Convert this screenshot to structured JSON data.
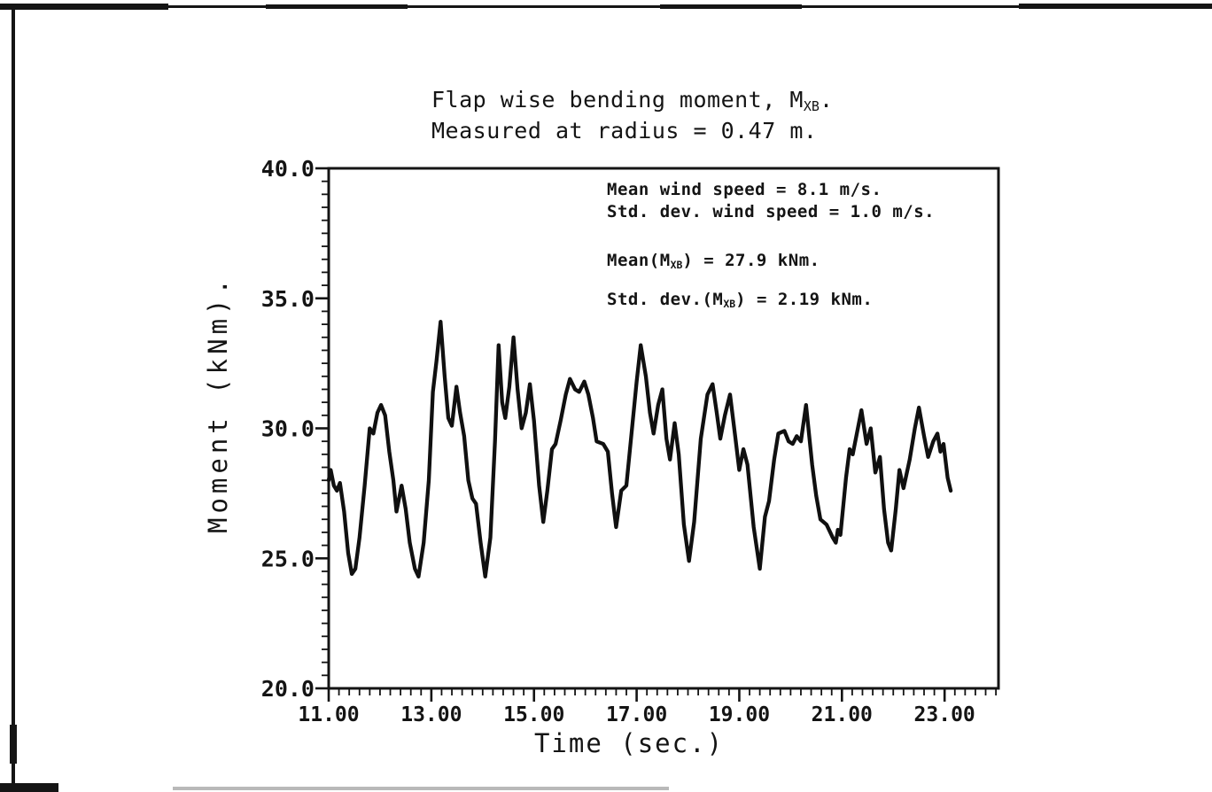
{
  "page": {
    "background": "#ffffff",
    "ink": "#141414"
  },
  "chart_data": {
    "type": "line",
    "title": {
      "pre": "Flap wise bending moment, M",
      "sub": "XB",
      "post": "."
    },
    "subtitle": "Measured at radius = 0.47 m.",
    "xlabel": "Time (sec.)",
    "ylabel": "Moment (kNm).",
    "xlim": [
      11.0,
      24.05
    ],
    "ylim": [
      20.0,
      40.0
    ],
    "grid": false,
    "legend": "none",
    "x_ticks": {
      "values": [
        11,
        13,
        15,
        17,
        19,
        21,
        23
      ],
      "labels": [
        "11.00",
        "13.00",
        "15.00",
        "17.00",
        "19.00",
        "21.00",
        "23.00"
      ],
      "minor_step": 0.2,
      "minor_max": 24.0
    },
    "y_ticks": {
      "values": [
        20,
        25,
        30,
        35,
        40
      ],
      "labels": [
        "20.0",
        "25.0",
        "30.0",
        "35.0",
        "40.0"
      ],
      "minor_step": 0.5
    },
    "annotations": [
      {
        "pre": "Mean wind speed = 8.1 m/s.",
        "sub": "",
        "post": ""
      },
      {
        "pre": "Std. dev. wind speed = 1.0 m/s.",
        "sub": "",
        "post": ""
      },
      {
        "pre": "Mean(M",
        "sub": "XB",
        "post": ") = 27.9 kNm."
      },
      {
        "pre": "Std. dev.(M",
        "sub": "XB",
        "post": ") = 2.19 kNm."
      }
    ],
    "series": [
      {
        "name": "Flap wise bending moment M_XB vs time",
        "x": [
          11.0,
          11.04,
          11.1,
          11.16,
          11.22,
          11.3,
          11.38,
          11.45,
          11.52,
          11.6,
          11.7,
          11.8,
          11.87,
          11.95,
          12.02,
          12.1,
          12.18,
          12.26,
          12.32,
          12.42,
          12.5,
          12.58,
          12.68,
          12.75,
          12.85,
          12.95,
          13.03,
          13.1,
          13.18,
          13.26,
          13.33,
          13.4,
          13.49,
          13.56,
          13.64,
          13.72,
          13.8,
          13.87,
          13.96,
          14.05,
          14.15,
          14.24,
          14.31,
          14.38,
          14.44,
          14.52,
          14.6,
          14.68,
          14.76,
          14.84,
          14.92,
          15.0,
          15.1,
          15.18,
          15.26,
          15.35,
          15.42,
          15.52,
          15.62,
          15.7,
          15.8,
          15.88,
          15.98,
          16.06,
          16.15,
          16.22,
          16.35,
          16.44,
          16.52,
          16.6,
          16.7,
          16.8,
          16.9,
          17.0,
          17.08,
          17.18,
          17.26,
          17.33,
          17.42,
          17.5,
          17.58,
          17.65,
          17.74,
          17.82,
          17.92,
          18.02,
          18.12,
          18.25,
          18.38,
          18.48,
          18.56,
          18.63,
          18.72,
          18.82,
          18.92,
          19.0,
          19.08,
          19.16,
          19.28,
          19.4,
          19.5,
          19.58,
          19.68,
          19.76,
          19.88,
          19.96,
          20.04,
          20.12,
          20.2,
          20.3,
          20.42,
          20.5,
          20.58,
          20.7,
          20.82,
          20.88,
          20.92,
          20.97,
          21.08,
          21.15,
          21.21,
          21.3,
          21.38,
          21.48,
          21.56,
          21.65,
          21.74,
          21.82,
          21.9,
          21.96,
          22.05,
          22.12,
          22.2,
          22.32,
          22.42,
          22.5,
          22.6,
          22.68,
          22.78,
          22.86,
          22.92,
          22.98,
          23.06,
          23.12
        ],
        "y": [
          28.0,
          28.4,
          27.8,
          27.6,
          27.9,
          26.8,
          25.2,
          24.4,
          24.6,
          25.8,
          27.8,
          30.0,
          29.8,
          30.6,
          30.9,
          30.5,
          29.1,
          28.0,
          26.8,
          27.8,
          26.9,
          25.6,
          24.6,
          24.3,
          25.6,
          28.0,
          31.4,
          32.6,
          34.1,
          32.0,
          30.4,
          30.1,
          31.6,
          30.6,
          29.7,
          28.0,
          27.3,
          27.1,
          25.6,
          24.3,
          25.8,
          29.5,
          33.2,
          31.0,
          30.4,
          31.6,
          33.5,
          31.5,
          30.0,
          30.6,
          31.7,
          30.3,
          27.8,
          26.4,
          27.6,
          29.2,
          29.4,
          30.3,
          31.3,
          31.9,
          31.5,
          31.4,
          31.8,
          31.3,
          30.4,
          29.5,
          29.4,
          29.1,
          27.5,
          26.2,
          27.6,
          27.8,
          29.8,
          31.8,
          33.2,
          32.0,
          30.6,
          29.8,
          30.9,
          31.5,
          29.6,
          28.8,
          30.2,
          29.0,
          26.3,
          24.9,
          26.4,
          29.6,
          31.3,
          31.7,
          30.6,
          29.6,
          30.5,
          31.3,
          29.7,
          28.4,
          29.2,
          28.6,
          26.2,
          24.6,
          26.6,
          27.2,
          28.8,
          29.8,
          29.9,
          29.5,
          29.4,
          29.7,
          29.5,
          30.9,
          28.6,
          27.4,
          26.5,
          26.3,
          25.8,
          25.6,
          26.1,
          25.9,
          28.1,
          29.2,
          29.0,
          29.9,
          30.7,
          29.4,
          30.0,
          28.3,
          28.9,
          26.9,
          25.6,
          25.3,
          26.9,
          28.4,
          27.7,
          28.8,
          30.0,
          30.8,
          29.7,
          28.9,
          29.5,
          29.8,
          29.1,
          29.4,
          28.1,
          27.6
        ]
      }
    ],
    "stats_shown": {
      "mean_wind_speed_ms": 8.1,
      "std_dev_wind_speed_ms": 1.0,
      "mean_Mxb_kNm": 27.9,
      "std_dev_Mxb_kNm": 2.19
    }
  }
}
